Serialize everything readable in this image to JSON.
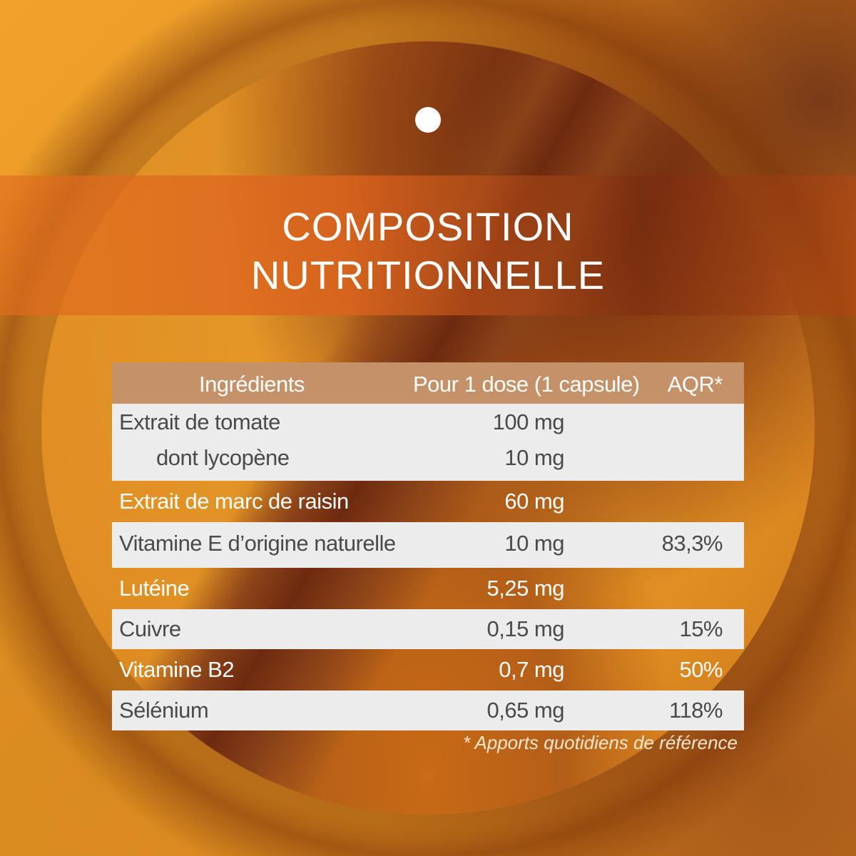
{
  "title": {
    "line1": "COMPOSITION",
    "line2": "NUTRITIONNELLE"
  },
  "table": {
    "headers": [
      "Ingrédients",
      "Pour 1 dose (1 capsule)",
      "AQR*"
    ],
    "rows": [
      {
        "ingredient": "Extrait de tomate",
        "dose": "100 mg",
        "aqr": "",
        "sub_ingredient": "dont lycopène",
        "sub_dose": "10 mg"
      },
      {
        "ingredient": "Extrait de marc de raisin",
        "dose": "60 mg",
        "aqr": ""
      },
      {
        "ingredient": "Vitamine E d’origine naturelle",
        "dose": "10 mg",
        "aqr": "83,3%"
      },
      {
        "ingredient": "Lutéine",
        "dose": "5,25 mg",
        "aqr": ""
      },
      {
        "ingredient": "Cuivre",
        "dose": "0,15 mg",
        "aqr": "15%"
      },
      {
        "ingredient": "Vitamine B2",
        "dose": "0,7 mg",
        "aqr": "50%"
      },
      {
        "ingredient": "Sélénium",
        "dose": "0,65 mg",
        "aqr": "118%"
      }
    ]
  },
  "footnote": "* Apports quotidiens de référence",
  "colors": {
    "header_bg": "#c49168",
    "light_row_bg": "#ececec",
    "accent_orange": "#e0901e",
    "text_dark": "#4a4a4a"
  }
}
